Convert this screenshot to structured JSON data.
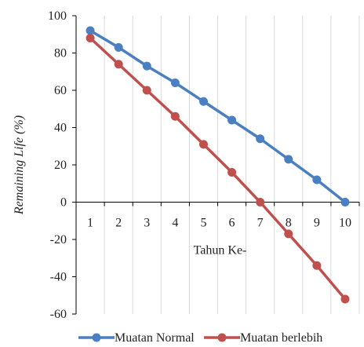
{
  "chart_data": {
    "type": "line",
    "title": "",
    "xlabel": "Tahun Ke-",
    "ylabel": "Remaining Life  (%)",
    "categories": [
      "1",
      "2",
      "3",
      "4",
      "5",
      "6",
      "7",
      "8",
      "9",
      "10"
    ],
    "ylim": [
      -60,
      100
    ],
    "yticks": [
      "100",
      "80",
      "60",
      "40",
      "20",
      "0",
      "-20",
      "-40",
      "-60"
    ],
    "grid": "vertical",
    "legend_position": "bottom",
    "series": [
      {
        "name": "Muatan Normal",
        "color": "#4a7fc1",
        "values": [
          92,
          83,
          73,
          64,
          54,
          44,
          34,
          23,
          12,
          0
        ]
      },
      {
        "name": "Muatan berlebih",
        "color": "#c0504d",
        "values": [
          88,
          74,
          60,
          46,
          31,
          16,
          0,
          -17,
          -34,
          -52
        ]
      }
    ]
  }
}
